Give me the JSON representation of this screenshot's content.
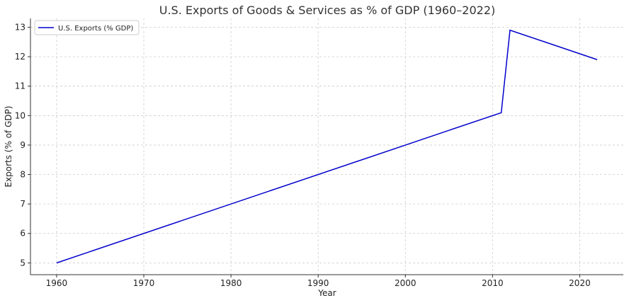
{
  "chart_data": {
    "type": "line",
    "title": "U.S. Exports of Goods & Services as % of GDP (1960–2022)",
    "xlabel": "Year",
    "ylabel": "Exports (% of GDP)",
    "xlim": [
      1957,
      2025
    ],
    "ylim": [
      4.6,
      13.3
    ],
    "x_ticks": [
      1960,
      1970,
      1980,
      1990,
      2000,
      2010,
      2020
    ],
    "y_ticks": [
      5,
      6,
      7,
      8,
      9,
      10,
      11,
      12,
      13
    ],
    "grid": true,
    "legend_position": "top-left",
    "series": [
      {
        "name": "U.S. Exports (% GDP)",
        "color": "#0000cc",
        "x": [
          1960,
          2011,
          2012,
          2022
        ],
        "y": [
          5.0,
          10.1,
          12.9,
          11.9
        ]
      }
    ]
  }
}
